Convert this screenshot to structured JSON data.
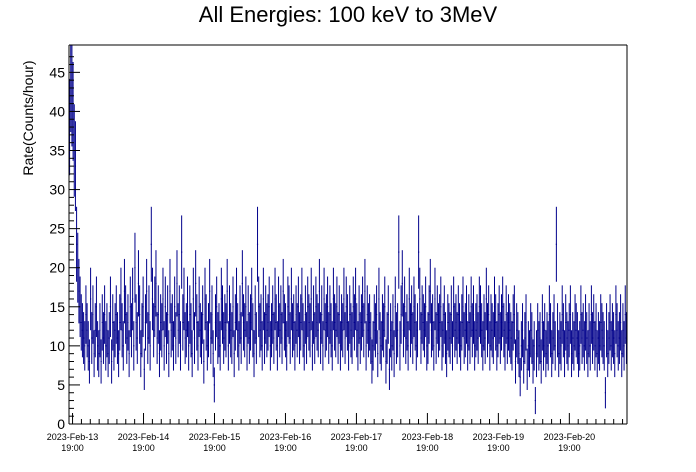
{
  "chart_data": {
    "type": "scatter",
    "title": "All Energies:  100 keV to 3MeV",
    "xlabel": "",
    "ylabel": "Rate(Counts/hour)",
    "ylim": [
      0,
      48.5
    ],
    "yticks": [
      0,
      5,
      10,
      15,
      20,
      25,
      30,
      35,
      40,
      45
    ],
    "xticks": [
      {
        "date": "2023-Feb-13",
        "time": "19:00"
      },
      {
        "date": "2023-Feb-14",
        "time": "19:00"
      },
      {
        "date": "2023-Feb-15",
        "time": "19:00"
      },
      {
        "date": "2023-Feb-16",
        "time": "19:00"
      },
      {
        "date": "2023-Feb-17",
        "time": "19:00"
      },
      {
        "date": "2023-Feb-18",
        "time": "19:00"
      },
      {
        "date": "2023-Feb-19",
        "time": "19:00"
      },
      {
        "date": "2023-Feb-20",
        "time": "19:00"
      }
    ],
    "x_unit": "hours (2023-Feb-13 19:00 = 0)",
    "xlim": [
      -1.2,
      187.5
    ],
    "grid": false,
    "error_bars": "sqrt(counts)",
    "series": [
      {
        "name": "",
        "color": "#00008b",
        "values": [
          38,
          44,
          42,
          40,
          35,
          33,
          23,
          20,
          17,
          15,
          13,
          12,
          11,
          10,
          14,
          12,
          10,
          8,
          16,
          11,
          14,
          9,
          12,
          15,
          10,
          9,
          12,
          8,
          13,
          11,
          14,
          10,
          12,
          9,
          11,
          15,
          8,
          13,
          10,
          12,
          14,
          11,
          9,
          13,
          16,
          12,
          10,
          17,
          14,
          11,
          13,
          9,
          15,
          12,
          16,
          10,
          20,
          13,
          11,
          18,
          14,
          9,
          12,
          15,
          7,
          13,
          17,
          11,
          14,
          10,
          23,
          16,
          12,
          15,
          18,
          11,
          14,
          9,
          13,
          12,
          16,
          10,
          15,
          11,
          14,
          9,
          17,
          12,
          13,
          10,
          15,
          11,
          18,
          12,
          14,
          10,
          22,
          13,
          16,
          11,
          12,
          15,
          10,
          14,
          12,
          9,
          16,
          11,
          18,
          13,
          10,
          15,
          12,
          11,
          14,
          8,
          16,
          13,
          10,
          12,
          17,
          11,
          14,
          9,
          5,
          13,
          15,
          11,
          12,
          10,
          16,
          14,
          11,
          13,
          12,
          17,
          10,
          14,
          12,
          11,
          15,
          9,
          13,
          16,
          12,
          10,
          14,
          11,
          18,
          13,
          12,
          15,
          10,
          14,
          11,
          13,
          16,
          12,
          9,
          14,
          11,
          23,
          15,
          12,
          13,
          10,
          16,
          11,
          14,
          12,
          13,
          15,
          10,
          12,
          14,
          11,
          16,
          13,
          10,
          15,
          12,
          14,
          11,
          17,
          13,
          12,
          10,
          15,
          14,
          11,
          16,
          12,
          13,
          10,
          14,
          12,
          15,
          11,
          13,
          16,
          12,
          10,
          14,
          11,
          15,
          13,
          12,
          16,
          10,
          14,
          11,
          15,
          13,
          12,
          17,
          11,
          14,
          10,
          16,
          12,
          13,
          15,
          11,
          14,
          12,
          10,
          16,
          13,
          12,
          15,
          11,
          14,
          10,
          13,
          12,
          16,
          11,
          15,
          13,
          10,
          14,
          12,
          11,
          15,
          13,
          16,
          12,
          10,
          14,
          11,
          13,
          15,
          12,
          17,
          10,
          14,
          12,
          13,
          11,
          8,
          10,
          13,
          12,
          14,
          9,
          16,
          11,
          10,
          13,
          12,
          15,
          8,
          11,
          14,
          7,
          12,
          10,
          13,
          9,
          15,
          11,
          12,
          22,
          10,
          14,
          18,
          12,
          15,
          11,
          13,
          10,
          16,
          12,
          14,
          11,
          15,
          13,
          10,
          12,
          22,
          16,
          11,
          14,
          13,
          12,
          15,
          10,
          11,
          14,
          17,
          12,
          13,
          10,
          16,
          11,
          14,
          12,
          13,
          15,
          10,
          12,
          14,
          11,
          9,
          13,
          12,
          11,
          14,
          10,
          15,
          12,
          13,
          11,
          14,
          12,
          10,
          13,
          15,
          11,
          12,
          14,
          10,
          13,
          11,
          15,
          12,
          14,
          10,
          12,
          13,
          11,
          15,
          14,
          12,
          10,
          13,
          11,
          16,
          12,
          14,
          10,
          13,
          12,
          11,
          15,
          13,
          10,
          12,
          14,
          11,
          13,
          15,
          12,
          10,
          14,
          11,
          13,
          12,
          11,
          10,
          13,
          14,
          8,
          12,
          11,
          9,
          6,
          10,
          12,
          8,
          11,
          13,
          7,
          10,
          9,
          12,
          11,
          8,
          10,
          3,
          9,
          12,
          10,
          11,
          8,
          13,
          10,
          12,
          9,
          11,
          10,
          14,
          12,
          9,
          11,
          13,
          10,
          23,
          12,
          9,
          11,
          10,
          14,
          12,
          9,
          13,
          11,
          10,
          12,
          14,
          9,
          11,
          10,
          13,
          12,
          11,
          9,
          10,
          14,
          11,
          12,
          10,
          13,
          11,
          9,
          12,
          10,
          14,
          11,
          13,
          10,
          12,
          9,
          11,
          10,
          13,
          12,
          11,
          10,
          4,
          12,
          9,
          11,
          13,
          10,
          12,
          11,
          9,
          14,
          12,
          10,
          11,
          13,
          9,
          12,
          10,
          14,
          11
        ]
      }
    ]
  }
}
